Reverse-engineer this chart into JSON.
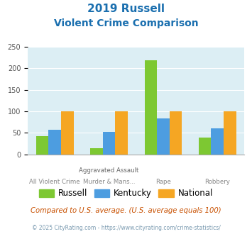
{
  "title_line1": "2019 Russell",
  "title_line2": "Violent Crime Comparison",
  "groups": [
    {
      "label_top": "",
      "label_bot": "All Violent Crime",
      "russell": 43,
      "kentucky": 58,
      "national": 100
    },
    {
      "label_top": "Aggravated Assault",
      "label_bot": "Murder & Mans...",
      "russell": 15,
      "kentucky": 53,
      "national": 100
    },
    {
      "label_top": "",
      "label_bot": "Rape",
      "russell": 218,
      "kentucky": 83,
      "national": 100
    },
    {
      "label_top": "",
      "label_bot": "Robbery",
      "russell": 40,
      "kentucky": 60,
      "national": 100
    }
  ],
  "russell_color": "#7dc832",
  "kentucky_color": "#4d9de0",
  "national_color": "#f5a623",
  "ylim": [
    0,
    250
  ],
  "yticks": [
    0,
    50,
    100,
    150,
    200,
    250
  ],
  "plot_bg": "#dceef4",
  "title_color": "#1a6faf",
  "footer1": "Compared to U.S. average. (U.S. average equals 100)",
  "footer2": "© 2025 CityRating.com - https://www.cityrating.com/crime-statistics/",
  "footer1_color": "#c85000",
  "footer2_color": "#7a9ab0"
}
